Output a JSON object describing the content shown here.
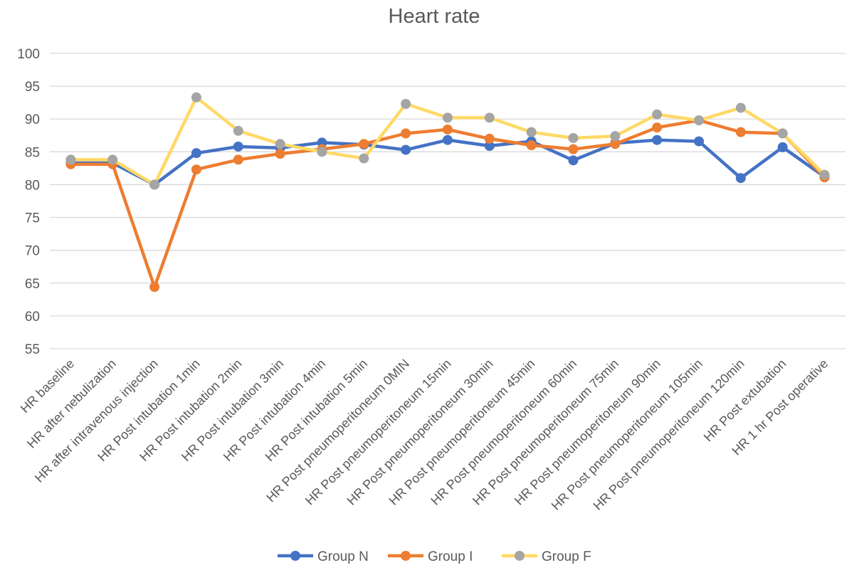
{
  "chart_data": {
    "type": "line",
    "title": "Heart rate",
    "xlabel": "",
    "ylabel": "",
    "ylim": [
      55,
      100
    ],
    "yticks": [
      55,
      60,
      65,
      70,
      75,
      80,
      85,
      90,
      95,
      100
    ],
    "grid": true,
    "legend_position": "bottom",
    "categories": [
      "HR baseline",
      "HR after nebulization",
      "HR after intravenous injection",
      "HR Post intubation  1min",
      "HR Post intubation 2min",
      "HR Post intubation   3min",
      "HR Post intubation  4min",
      "HR Post intubation  5min",
      "HR Post pneumoperitoneum 0MIN",
      "HR Post pneumoperitoneum 15min",
      "HR Post pneumoperitoneum 30min",
      "HR Post pneumoperitoneum 45min",
      "HR  Post pneumoperitoneum 60min",
      "HR Post pneumoperitoneum 75min",
      "HR  Post pneumoperitoneum 90min",
      "HR Post pneumoperitoneum 105min",
      "HR Post pneumoperitoneum 120min",
      "HR Post extubation",
      "HR 1 hr Post operative"
    ],
    "series": [
      {
        "name": "Group N",
        "color": "#4472C4",
        "values": [
          83.3,
          83.3,
          80.0,
          84.8,
          85.8,
          85.6,
          86.4,
          86.1,
          85.3,
          86.8,
          85.9,
          86.6,
          83.7,
          86.3,
          86.8,
          86.6,
          81.0,
          85.7,
          81.2
        ]
      },
      {
        "name": "Group I",
        "color": "#ED7D31",
        "values": [
          83.1,
          83.1,
          64.4,
          82.3,
          83.8,
          84.7,
          85.4,
          86.2,
          87.8,
          88.4,
          87.0,
          86.0,
          85.4,
          86.2,
          88.7,
          89.8,
          88.0,
          87.8,
          81.1
        ]
      },
      {
        "name": "Group F",
        "color": "#FFD966",
        "marker_color": "#A5A5A5",
        "values": [
          83.8,
          83.8,
          80.0,
          93.3,
          88.2,
          86.2,
          85.0,
          84.0,
          92.3,
          90.2,
          90.2,
          88.0,
          87.1,
          87.4,
          90.7,
          89.8,
          91.7,
          87.8,
          81.5
        ]
      }
    ]
  }
}
